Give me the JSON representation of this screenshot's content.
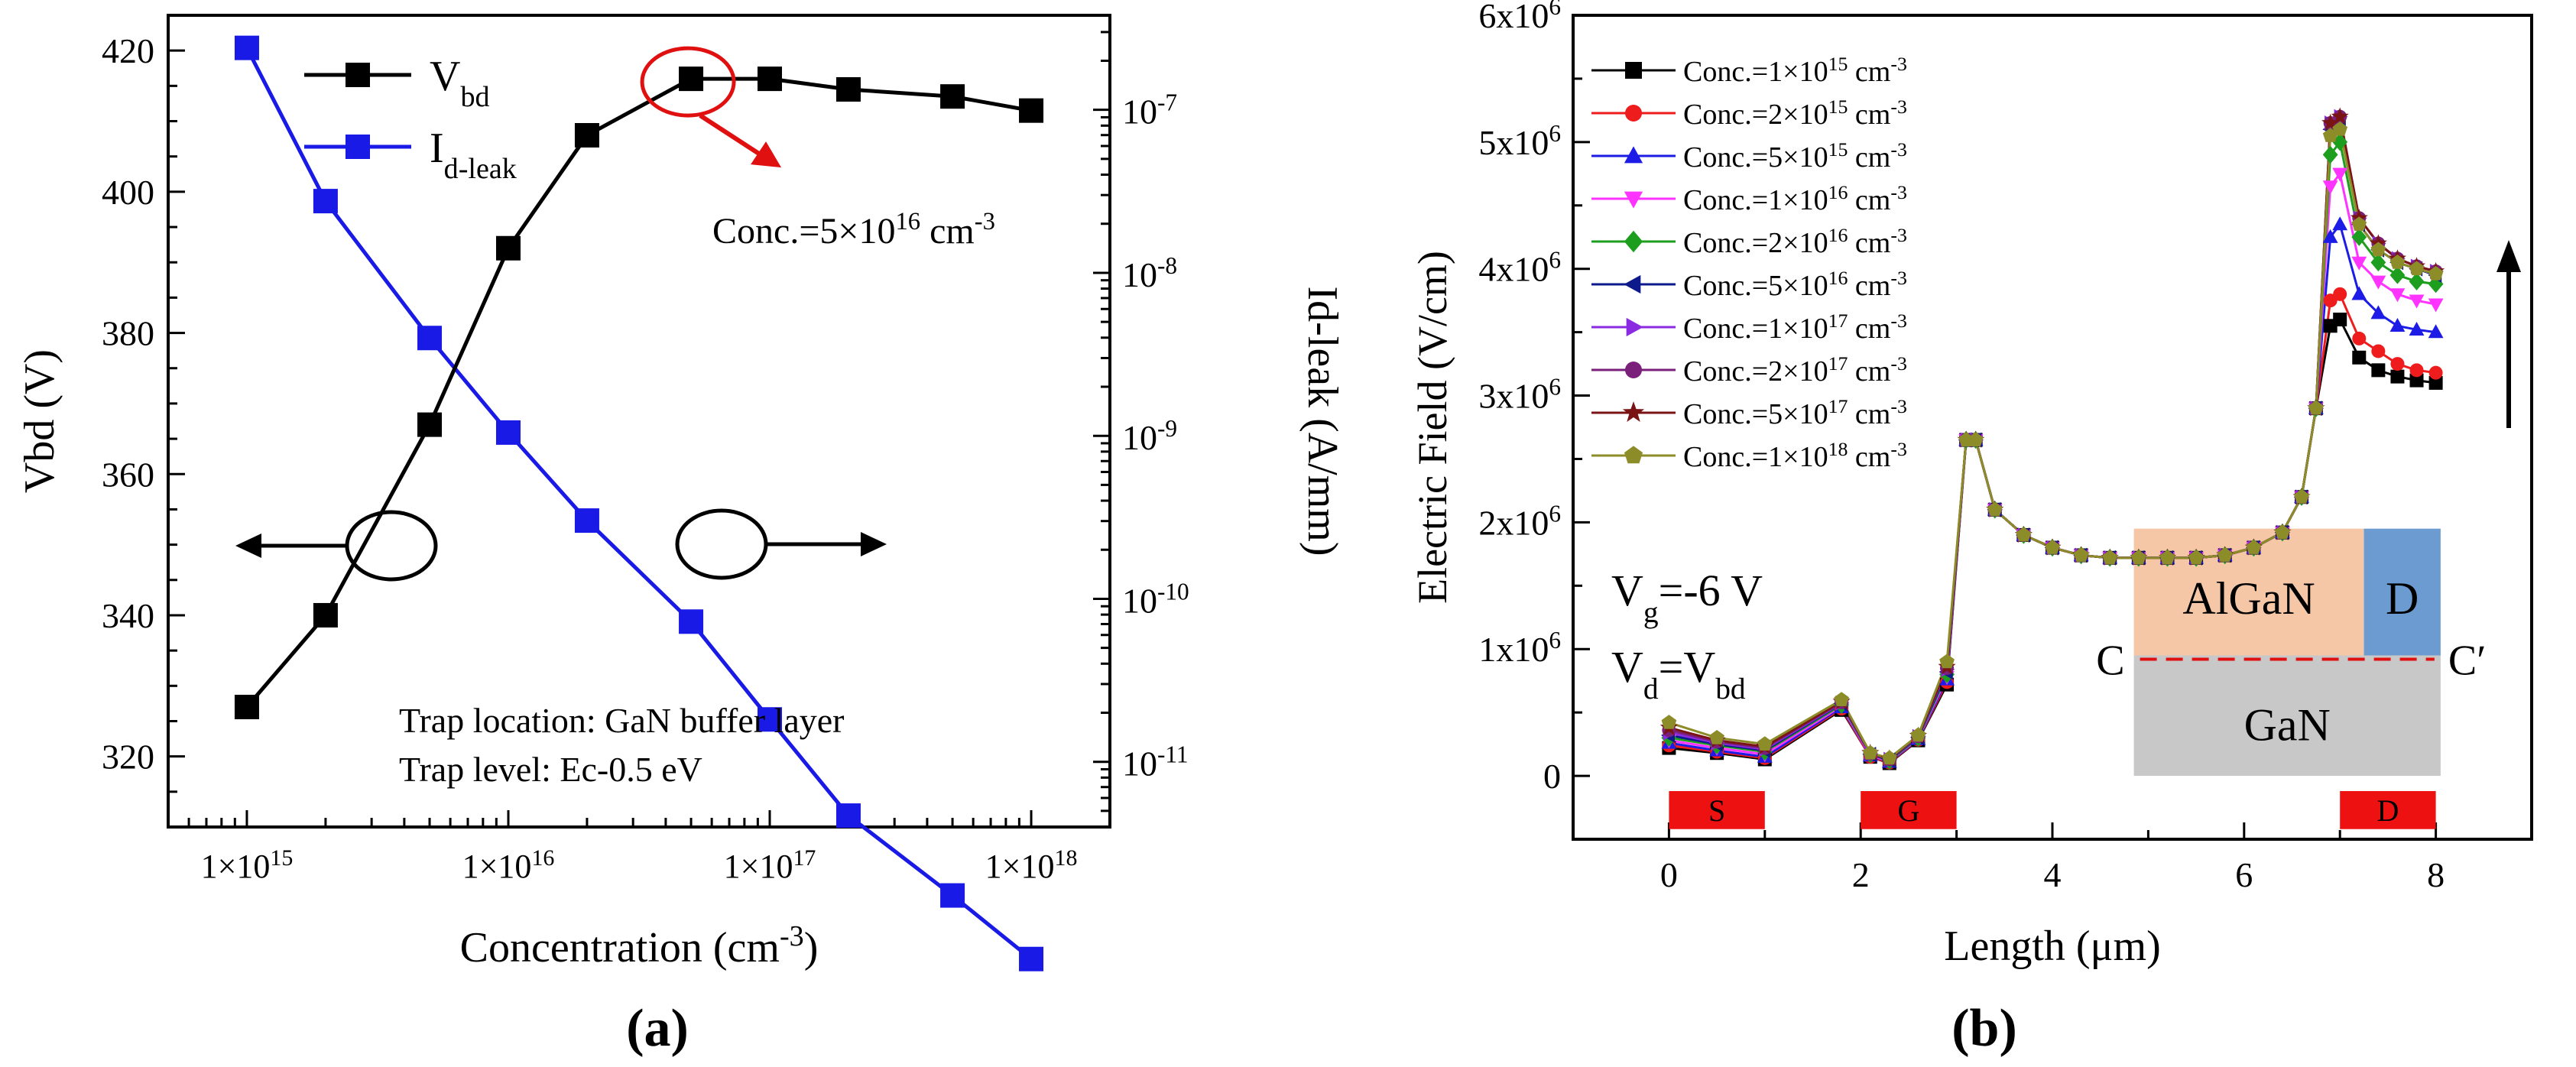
{
  "chart_data": [
    {
      "panel_label": "(a)",
      "type": "line",
      "xscale": "log",
      "x_tick_labels": [
        "1×10",
        "1×10",
        "1×10",
        "1×10"
      ],
      "x_tick_exponents": [
        "15",
        "16",
        "17",
        "18"
      ],
      "x_tick_values": [
        1000000000000000.0,
        1e+16,
        1e+17,
        1e+18
      ],
      "xlim": [
        500000000000000.0,
        2e+18
      ],
      "xlabel": "Concentration (cm",
      "xlabel_sup": "-3",
      "xlabel_tail": ")",
      "ylabel": "Vbd (V)",
      "ylim": [
        310,
        425
      ],
      "y_ticks": [
        320,
        340,
        360,
        380,
        400,
        420
      ],
      "y2label": "Id-leak (A/mm)",
      "y2scale": "log",
      "y2lim_exp": [
        -11.4,
        -6.42
      ],
      "y2_tick_exponents": [
        "-7",
        "-8",
        "-9",
        "-10",
        "-11"
      ],
      "y2_tick_base": "10",
      "x": [
        1000000000000000.0,
        2000000000000000.0,
        5000000000000000.0,
        1e+16,
        2e+16,
        5e+16,
        1e+17,
        2e+17,
        5e+17,
        1e+18
      ],
      "series": [
        {
          "name": "V",
          "name_sub": "bd",
          "axis": "left",
          "color": "#000000",
          "values": [
            327,
            340,
            367,
            392,
            408,
            416,
            416,
            414.5,
            413.5,
            411.5
          ]
        },
        {
          "name": "I",
          "name_sub": "d-leak",
          "axis": "right",
          "color": "#1a1ae6",
          "values_log10": [
            -6.62,
            -7.56,
            -8.4,
            -8.98,
            -9.52,
            -10.14,
            -10.74,
            -11.33,
            -11.82,
            -12.21
          ]
        }
      ],
      "annotation": {
        "prefix": "Conc.=5×10",
        "sup": "16",
        "suffix": " cm",
        "sup2": "-3",
        "color": "#e01010"
      },
      "notes": [
        "Trap location: GaN buffer layer",
        "Trap level: Ec-0.5 eV"
      ]
    },
    {
      "panel_label": "(b)",
      "type": "line",
      "xlabel": "Length (μm)",
      "ylabel": "Electric Field (V/cm)",
      "xlim": [
        -1,
        9
      ],
      "x_ticks": [
        0,
        2,
        4,
        6,
        8
      ],
      "x_tick_labels": [
        "0",
        "2",
        "4",
        "6",
        "8"
      ],
      "ylim": [
        -500000.0,
        6000000.0
      ],
      "y_ticks": [
        0,
        1000000.0,
        2000000.0,
        3000000.0,
        4000000.0,
        5000000.0,
        6000000.0
      ],
      "y_tick_labels": [
        "0",
        "1x10",
        "2x10",
        "3x10",
        "4x10",
        "5x10",
        "6x10"
      ],
      "y_tick_sup": "6",
      "x": [
        0,
        0.5,
        1,
        1.8,
        2.1,
        2.3,
        2.6,
        2.9,
        3.1,
        3.2,
        3.4,
        3.7,
        4.0,
        4.3,
        4.6,
        4.9,
        5.2,
        5.5,
        5.8,
        6.1,
        6.4,
        6.6,
        6.75,
        6.9,
        7.0,
        7.2,
        7.4,
        7.6,
        7.8,
        8.0
      ],
      "base_profile": [
        0,
        0,
        0,
        0,
        0,
        0,
        0,
        0,
        2650000.0,
        2650000.0,
        2100000.0,
        1900000.0,
        1800000.0,
        1740000.0,
        1720000.0,
        1720000.0,
        1720000.0,
        1720000.0,
        1740000.0,
        1800000.0,
        1920000.0,
        2200000.0,
        2900000.0,
        0,
        0,
        0,
        0,
        0,
        0,
        0
      ],
      "series": [
        {
          "label": "Conc.=1×10",
          "sup": "15",
          "unit": " cm",
          "unit_sup": "-3",
          "color": "#000000",
          "marker": "square",
          "values": [
            220000,
            180000,
            130000,
            520000,
            150000,
            100000,
            280000,
            720000,
            2650000,
            2650000,
            2100000,
            1900000,
            1800000,
            1740000,
            1720000,
            1720000,
            1720000,
            1720000,
            1740000,
            1800000,
            1920000,
            2200000,
            2900000,
            3550000,
            3600000,
            3300000,
            3200000,
            3150000,
            3120000,
            3100000
          ]
        },
        {
          "label": "Conc.=2×10",
          "sup": "15",
          "unit": " cm",
          "unit_sup": "-3",
          "color": "#ee1c1c",
          "marker": "circle",
          "values": [
            240000,
            190000,
            140000,
            530000,
            150000,
            105000,
            285000,
            740000,
            2650000,
            2650000,
            2100000,
            1900000,
            1800000,
            1740000,
            1720000,
            1720000,
            1720000,
            1720000,
            1740000,
            1800000,
            1920000,
            2200000,
            2900000,
            3750000,
            3800000,
            3450000,
            3350000,
            3250000,
            3200000,
            3180000
          ]
        },
        {
          "label": "Conc.=5×10",
          "sup": "15",
          "unit": " cm",
          "unit_sup": "-3",
          "color": "#1c1ce6",
          "marker": "triangle",
          "values": [
            260000,
            200000,
            150000,
            540000,
            160000,
            110000,
            290000,
            760000,
            2650000,
            2650000,
            2100000,
            1900000,
            1800000,
            1740000,
            1720000,
            1720000,
            1720000,
            1720000,
            1740000,
            1800000,
            1920000,
            2200000,
            2900000,
            4250000,
            4350000,
            3800000,
            3650000,
            3550000,
            3520000,
            3500000
          ]
        },
        {
          "label": "Conc.=1×10",
          "sup": "16",
          "unit": " cm",
          "unit_sup": "-3",
          "color": "#ff33ff",
          "marker": "triangle-down",
          "values": [
            280000,
            220000,
            170000,
            550000,
            160000,
            115000,
            295000,
            780000,
            2650000,
            2650000,
            2100000,
            1900000,
            1800000,
            1740000,
            1720000,
            1720000,
            1720000,
            1720000,
            1740000,
            1800000,
            1920000,
            2200000,
            2900000,
            4650000,
            4750000,
            4050000,
            3900000,
            3800000,
            3750000,
            3720000
          ]
        },
        {
          "label": "Conc.=2×10",
          "sup": "16",
          "unit": " cm",
          "unit_sup": "-3",
          "color": "#1e9e1e",
          "marker": "diamond",
          "values": [
            300000,
            240000,
            190000,
            560000,
            170000,
            120000,
            300000,
            800000,
            2650000,
            2650000,
            2100000,
            1900000,
            1800000,
            1740000,
            1720000,
            1720000,
            1720000,
            1720000,
            1740000,
            1800000,
            1920000,
            2200000,
            2900000,
            4900000,
            5000000,
            4250000,
            4050000,
            3950000,
            3900000,
            3880000
          ]
        },
        {
          "label": "Conc.=5×10",
          "sup": "16",
          "unit": " cm",
          "unit_sup": "-3",
          "color": "#0d1a8c",
          "marker": "triangle-left",
          "values": [
            320000,
            250000,
            200000,
            570000,
            170000,
            125000,
            305000,
            820000,
            2650000,
            2650000,
            2100000,
            1900000,
            1800000,
            1740000,
            1720000,
            1720000,
            1720000,
            1720000,
            1740000,
            1800000,
            1920000,
            2200000,
            2900000,
            5100000,
            5150000,
            4350000,
            4150000,
            4050000,
            4000000,
            3950000
          ]
        },
        {
          "label": "Conc.=1×10",
          "sup": "17",
          "unit": " cm",
          "unit_sup": "-3",
          "color": "#8a2be2",
          "marker": "triangle-right",
          "values": [
            340000,
            260000,
            210000,
            575000,
            175000,
            130000,
            310000,
            840000,
            2650000,
            2650000,
            2100000,
            1900000,
            1800000,
            1740000,
            1720000,
            1720000,
            1720000,
            1720000,
            1740000,
            1800000,
            1920000,
            2200000,
            2900000,
            5150000,
            5200000,
            4400000,
            4200000,
            4080000,
            4020000,
            3980000
          ]
        },
        {
          "label": "Conc.=2×10",
          "sup": "17",
          "unit": " cm",
          "unit_sup": "-3",
          "color": "#7a1f7a",
          "marker": "circle",
          "values": [
            360000,
            270000,
            220000,
            580000,
            175000,
            130000,
            312000,
            850000,
            2650000,
            2650000,
            2100000,
            1900000,
            1800000,
            1740000,
            1720000,
            1720000,
            1720000,
            1720000,
            1740000,
            1800000,
            1920000,
            2200000,
            2900000,
            5150000,
            5200000,
            4400000,
            4200000,
            4080000,
            4020000,
            3980000
          ]
        },
        {
          "label": "Conc.=5×10",
          "sup": "17",
          "unit": " cm",
          "unit_sup": "-3",
          "color": "#7a1414",
          "marker": "star",
          "values": [
            380000,
            280000,
            230000,
            585000,
            180000,
            135000,
            315000,
            860000,
            2650000,
            2650000,
            2100000,
            1900000,
            1800000,
            1740000,
            1720000,
            1720000,
            1720000,
            1720000,
            1740000,
            1800000,
            1920000,
            2200000,
            2900000,
            5150000,
            5200000,
            4400000,
            4200000,
            4080000,
            4020000,
            3980000
          ]
        },
        {
          "label": "Conc.=1×10",
          "sup": "18",
          "unit": " cm",
          "unit_sup": "-3",
          "color": "#8c8c28",
          "marker": "pentagon",
          "values": [
            420000,
            300000,
            250000,
            600000,
            180000,
            140000,
            320000,
            900000,
            2650000,
            2650000,
            2100000,
            1900000,
            1800000,
            1740000,
            1720000,
            1720000,
            1720000,
            1720000,
            1740000,
            1800000,
            1920000,
            2200000,
            2900000,
            5050000,
            5100000,
            4350000,
            4150000,
            4050000,
            4000000,
            3960000
          ]
        }
      ],
      "voltage_labels": {
        "vg_main": "V",
        "vg_sub": "g",
        "vg_tail": "=-6 V",
        "vd_main": "V",
        "vd_sub": "d",
        "vd_tail": "=V",
        "vd_sub2": "bd"
      },
      "device": {
        "algan": "AlGaN",
        "drain": "D",
        "gan": "GaN",
        "cut_left": "C",
        "cut_right": "C′",
        "algan_color": "#f5c7a6",
        "drain_color": "#6b9bd1",
        "gan_color": "#c8c8c8",
        "cut_color": "#e01010"
      },
      "electrodes": [
        {
          "label": "S",
          "from": 0,
          "to": 1
        },
        {
          "label": "G",
          "from": 2,
          "to": 3
        },
        {
          "label": "D",
          "from": 7,
          "to": 8
        }
      ],
      "electrode_color": "#ee1111"
    }
  ]
}
